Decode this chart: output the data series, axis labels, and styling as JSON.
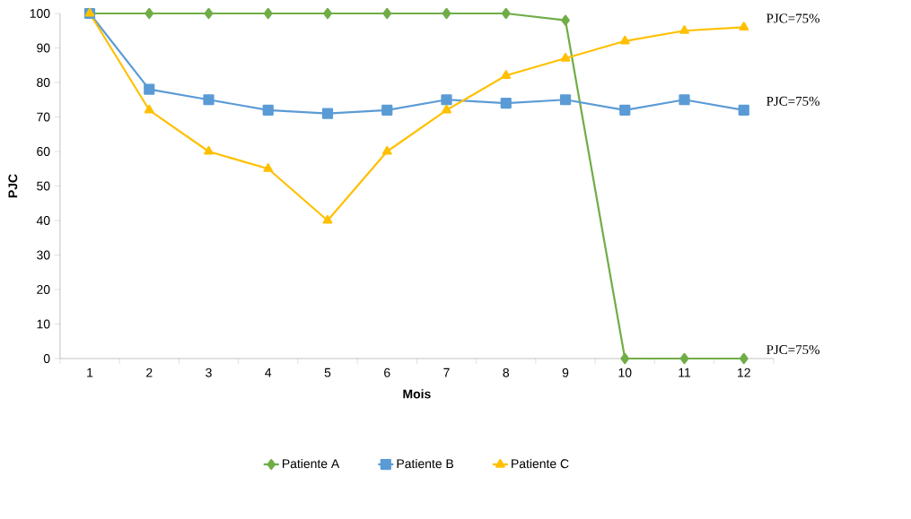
{
  "chart_data": {
    "type": "line",
    "xlabel": "Mois",
    "ylabel": "PJC",
    "categories": [
      "1",
      "2",
      "3",
      "4",
      "5",
      "6",
      "7",
      "8",
      "9",
      "10",
      "11",
      "12"
    ],
    "series": [
      {
        "name": "Patiente A",
        "color": "#70ad47",
        "marker": "diamond",
        "values": [
          100,
          100,
          100,
          100,
          100,
          100,
          100,
          100,
          98,
          0,
          0,
          0
        ]
      },
      {
        "name": "Patiente B",
        "color": "#5b9bd5",
        "marker": "square",
        "values": [
          100,
          78,
          75,
          72,
          71,
          72,
          75,
          74,
          75,
          72,
          75,
          72
        ]
      },
      {
        "name": "Patiente C",
        "color": "#ffc000",
        "marker": "triangle",
        "values": [
          100,
          72,
          60,
          55,
          40,
          60,
          72,
          82,
          87,
          92,
          95,
          96
        ]
      }
    ],
    "ylim": [
      0,
      100
    ],
    "yticks": [
      0,
      10,
      20,
      30,
      40,
      50,
      60,
      70,
      80,
      90,
      100
    ],
    "grid": false,
    "legend": "bottom",
    "line_style": "solid",
    "annotations": [
      {
        "text": "PJC=75%",
        "x": "12",
        "y": 96
      },
      {
        "text": "PJC=75%",
        "x": "12",
        "y": 72
      },
      {
        "text": "PJC=75%",
        "x": "12",
        "y": 0
      }
    ]
  }
}
